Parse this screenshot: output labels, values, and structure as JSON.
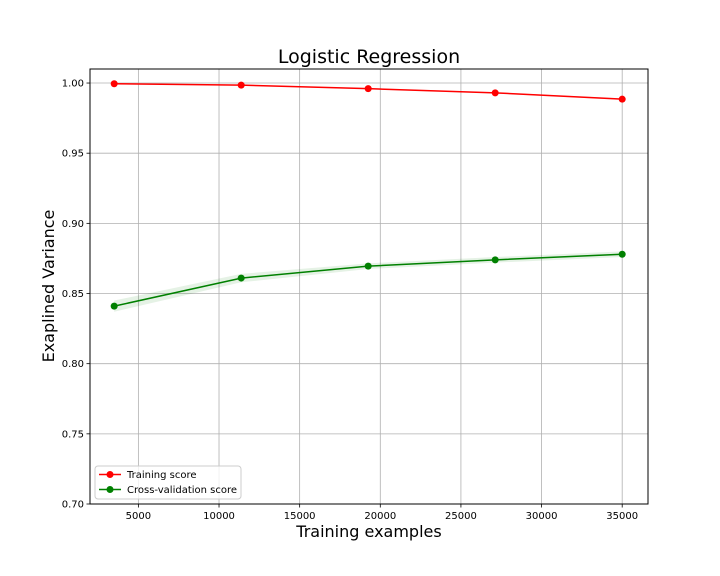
{
  "chart_data": {
    "type": "line",
    "title": "Logistic Regression",
    "xlabel": "Training examples",
    "ylabel": "Exaplined Variance",
    "xlim": [
      2000,
      36600
    ],
    "ylim": [
      0.7,
      1.01
    ],
    "xticks": [
      5000,
      10000,
      15000,
      20000,
      25000,
      30000,
      35000
    ],
    "xtick_labels": [
      "5000",
      "10000",
      "15000",
      "20000",
      "25000",
      "30000",
      "35000"
    ],
    "yticks": [
      0.7,
      0.75,
      0.8,
      0.85,
      0.9,
      0.95,
      1.0
    ],
    "ytick_labels": [
      "0.70",
      "0.75",
      "0.80",
      "0.85",
      "0.90",
      "0.95",
      "1.00"
    ],
    "grid": true,
    "legend_position": "lower-left",
    "x": [
      3500,
      11375,
      19250,
      27125,
      35000
    ],
    "series": [
      {
        "name": "Training score",
        "color": "#ff0000",
        "values": [
          0.9995,
          0.9985,
          0.996,
          0.993,
          0.9885
        ],
        "band_lower": [
          0.9993,
          0.9982,
          0.9956,
          0.9926,
          0.988
        ],
        "band_upper": [
          0.9997,
          0.9988,
          0.9964,
          0.9934,
          0.989
        ]
      },
      {
        "name": "Cross-validation score",
        "color": "#008000",
        "values": [
          0.841,
          0.861,
          0.8695,
          0.874,
          0.878
        ],
        "band_lower": [
          0.837,
          0.858,
          0.8675,
          0.872,
          0.876
        ],
        "band_upper": [
          0.845,
          0.864,
          0.8715,
          0.876,
          0.88
        ]
      }
    ]
  }
}
